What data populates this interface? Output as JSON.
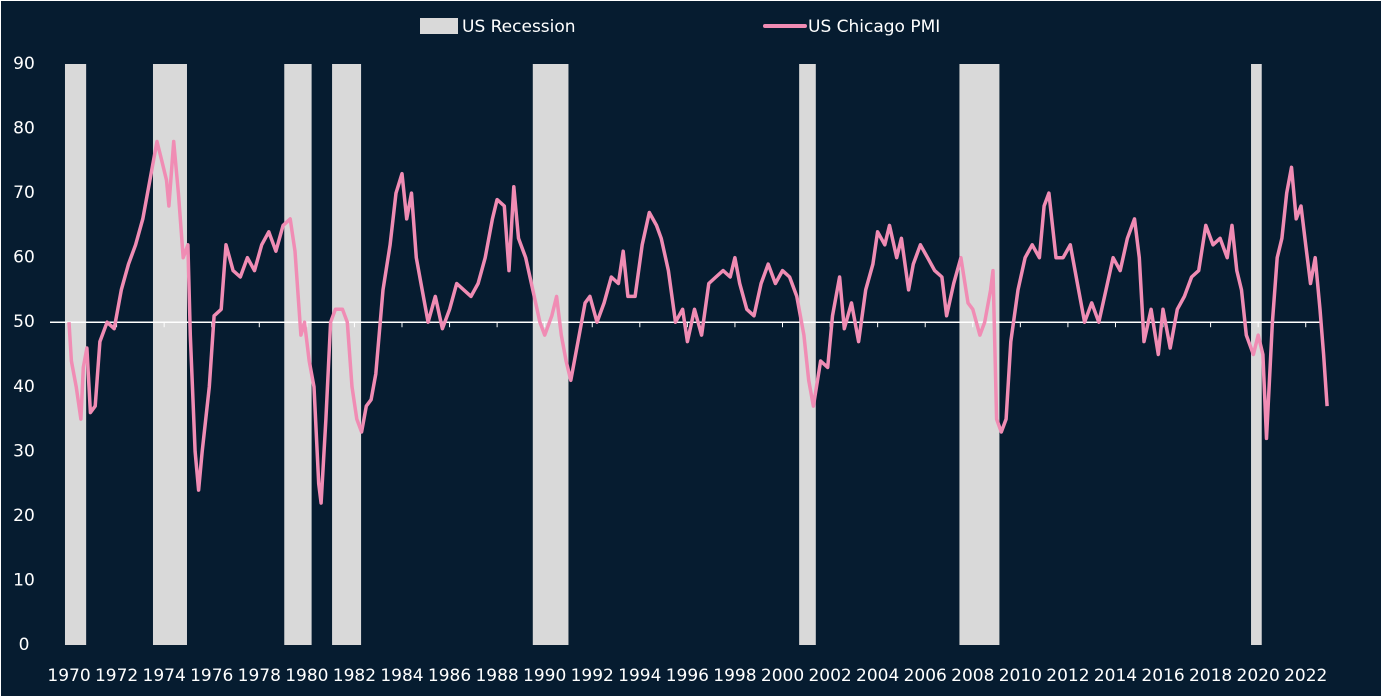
{
  "chart_data": {
    "type": "line",
    "xlim": [
      1969.2,
      2022.6
    ],
    "ylim": [
      0,
      90
    ],
    "xticks": [
      1970,
      1972,
      1974,
      1976,
      1978,
      1980,
      1982,
      1984,
      1986,
      1988,
      1990,
      1992,
      1994,
      1996,
      1998,
      2000,
      2002,
      2004,
      2006,
      2008,
      2010,
      2012,
      2014,
      2016,
      2018,
      2020,
      2022
    ],
    "yticks": [
      0,
      10,
      20,
      30,
      40,
      50,
      60,
      70,
      80,
      90
    ],
    "axis_crossing": 50,
    "recessions": {
      "name": "US Recession",
      "color": "#d9d9d9",
      "ranges": [
        [
          1969.83,
          1970.72
        ],
        [
          1973.53,
          1974.96
        ],
        [
          1979.05,
          1980.2
        ],
        [
          1981.06,
          1982.28
        ],
        [
          1989.5,
          1991.0
        ],
        [
          2000.7,
          2001.4
        ],
        [
          2007.44,
          2009.12
        ],
        [
          2019.7,
          2020.15
        ]
      ]
    },
    "series": [
      {
        "name": "US Chicago PMI",
        "color": "#f08cb4",
        "x": [
          1970.0,
          1970.1,
          1970.3,
          1970.5,
          1970.6,
          1970.75,
          1970.9,
          1971.1,
          1971.3,
          1971.6,
          1971.9,
          1972.2,
          1972.5,
          1972.8,
          1973.1,
          1973.4,
          1973.7,
          1973.9,
          1974.1,
          1974.2,
          1974.4,
          1974.6,
          1974.8,
          1975.0,
          1975.1,
          1975.3,
          1975.45,
          1975.6,
          1975.9,
          1976.1,
          1976.4,
          1976.6,
          1976.9,
          1977.2,
          1977.5,
          1977.8,
          1978.1,
          1978.4,
          1978.7,
          1979.0,
          1979.3,
          1979.5,
          1979.75,
          1979.9,
          1980.1,
          1980.3,
          1980.5,
          1980.6,
          1980.8,
          1981.0,
          1981.2,
          1981.5,
          1981.7,
          1981.9,
          1982.1,
          1982.3,
          1982.5,
          1982.7,
          1982.9,
          1983.2,
          1983.5,
          1983.75,
          1984.0,
          1984.2,
          1984.4,
          1984.6,
          1984.8,
          1985.1,
          1985.4,
          1985.7,
          1986.0,
          1986.3,
          1986.6,
          1986.9,
          1987.2,
          1987.5,
          1987.8,
          1988.0,
          1988.3,
          1988.5,
          1988.7,
          1988.9,
          1989.2,
          1989.5,
          1989.8,
          1990.0,
          1990.3,
          1990.5,
          1990.7,
          1990.9,
          1991.1,
          1991.4,
          1991.7,
          1991.9,
          1992.2,
          1992.5,
          1992.8,
          1993.1,
          1993.3,
          1993.5,
          1993.8,
          1994.1,
          1994.4,
          1994.7,
          1994.9,
          1995.2,
          1995.5,
          1995.8,
          1996.0,
          1996.3,
          1996.6,
          1996.9,
          1997.2,
          1997.5,
          1997.8,
          1998.0,
          1998.2,
          1998.5,
          1998.8,
          1999.1,
          1999.4,
          1999.7,
          2000.0,
          2000.3,
          2000.6,
          2000.9,
          2001.1,
          2001.3,
          2001.6,
          2001.9,
          2002.1,
          2002.4,
          2002.6,
          2002.9,
          2003.2,
          2003.5,
          2003.8,
          2004.0,
          2004.3,
          2004.5,
          2004.8,
          2005.0,
          2005.3,
          2005.5,
          2005.8,
          2006.1,
          2006.4,
          2006.7,
          2006.9,
          2007.2,
          2007.5,
          2007.8,
          2008.0,
          2008.3,
          2008.5,
          2008.75,
          2008.85,
          2009.0,
          2009.2,
          2009.4,
          2009.6,
          2009.9,
          2010.2,
          2010.5,
          2010.8,
          2011.0,
          2011.2,
          2011.5,
          2011.8,
          2012.1,
          2012.4,
          2012.7,
          2013.0,
          2013.3,
          2013.6,
          2013.9,
          2014.2,
          2014.5,
          2014.8,
          2015.0,
          2015.2,
          2015.5,
          2015.8,
          2016.0,
          2016.3,
          2016.6,
          2016.9,
          2017.2,
          2017.5,
          2017.8,
          2018.1,
          2018.4,
          2018.7,
          2018.9,
          2019.1,
          2019.3,
          2019.5,
          2019.8,
          2020.0,
          2020.2,
          2020.35,
          2020.6,
          2020.8,
          2021.0,
          2021.2,
          2021.4,
          2021.6,
          2021.8,
          2022.0,
          2022.2,
          2022.4,
          2022.6,
          2022.75,
          2022.9
        ],
        "values": [
          50,
          44,
          40,
          35,
          43,
          46,
          36,
          37,
          47,
          50,
          49,
          55,
          59,
          62,
          66,
          72,
          78,
          75,
          72,
          68,
          78,
          70,
          60,
          62,
          48,
          30,
          24,
          30,
          40,
          51,
          52,
          62,
          58,
          57,
          60,
          58,
          62,
          64,
          61,
          65,
          66,
          61,
          48,
          50,
          44,
          40,
          25,
          22,
          35,
          50,
          52,
          52,
          50,
          40,
          35,
          33,
          37,
          38,
          42,
          55,
          62,
          70,
          73,
          66,
          70,
          60,
          56,
          50,
          54,
          49,
          52,
          56,
          55,
          54,
          56,
          60,
          66,
          69,
          68,
          58,
          71,
          63,
          60,
          55,
          50,
          48,
          51,
          54,
          48,
          44,
          41,
          47,
          53,
          54,
          50,
          53,
          57,
          56,
          61,
          54,
          54,
          62,
          67,
          65,
          63,
          58,
          50,
          52,
          47,
          52,
          48,
          56,
          57,
          58,
          57,
          60,
          56,
          52,
          51,
          56,
          59,
          56,
          58,
          57,
          54,
          48,
          41,
          37,
          44,
          43,
          51,
          57,
          49,
          53,
          47,
          55,
          59,
          64,
          62,
          65,
          60,
          63,
          55,
          59,
          62,
          60,
          58,
          57,
          51,
          56,
          60,
          53,
          52,
          48,
          50,
          55,
          58,
          35,
          33,
          35,
          47,
          55,
          60,
          62,
          60,
          68,
          70,
          60,
          60,
          62,
          56,
          50,
          53,
          50,
          55,
          60,
          58,
          63,
          66,
          60,
          47,
          52,
          45,
          52,
          46,
          52,
          54,
          57,
          58,
          65,
          62,
          63,
          60,
          65,
          58,
          55,
          48,
          45,
          48,
          45,
          32,
          50,
          60,
          63,
          70,
          74,
          66,
          68,
          62,
          56,
          60,
          52,
          45,
          37
        ]
      }
    ]
  }
}
